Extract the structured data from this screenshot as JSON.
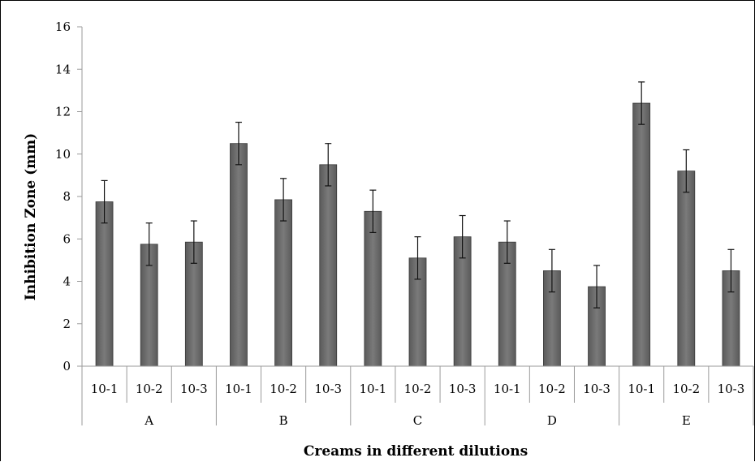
{
  "chart_data": {
    "type": "bar",
    "title": "",
    "xlabel": "Creams in different dilutions",
    "ylabel": "Inhibition Zone (mm)",
    "ylim": [
      0,
      16
    ],
    "yticks": [
      "0",
      "2",
      "4",
      "6",
      "8",
      "10",
      "12",
      "14",
      "16"
    ],
    "grid": false,
    "groups": [
      {
        "label": "A",
        "subcategories": [
          "10-1",
          "10-2",
          "10-3"
        ],
        "values": [
          7.75,
          5.75,
          5.85
        ],
        "errors": [
          1.0,
          1.0,
          1.0
        ]
      },
      {
        "label": "B",
        "subcategories": [
          "10-1",
          "10-2",
          "10-3"
        ],
        "values": [
          10.5,
          7.85,
          9.5
        ],
        "errors": [
          1.0,
          1.0,
          1.0
        ]
      },
      {
        "label": "C",
        "subcategories": [
          "10-1",
          "10-2",
          "10-3"
        ],
        "values": [
          7.3,
          5.1,
          6.1
        ],
        "errors": [
          1.0,
          1.0,
          1.0
        ]
      },
      {
        "label": "D",
        "subcategories": [
          "10-1",
          "10-2",
          "10-3"
        ],
        "values": [
          5.85,
          4.5,
          3.75
        ],
        "errors": [
          1.0,
          1.0,
          1.0
        ]
      },
      {
        "label": "E",
        "subcategories": [
          "10-1",
          "10-2",
          "10-3"
        ],
        "values": [
          12.4,
          9.2,
          4.5
        ],
        "errors": [
          1.0,
          1.0,
          1.0
        ]
      }
    ],
    "colors": {
      "bar_fill": "#6e6e6e",
      "bar_edge": "#3a3a3a",
      "axis": "#9a9a9a"
    }
  }
}
